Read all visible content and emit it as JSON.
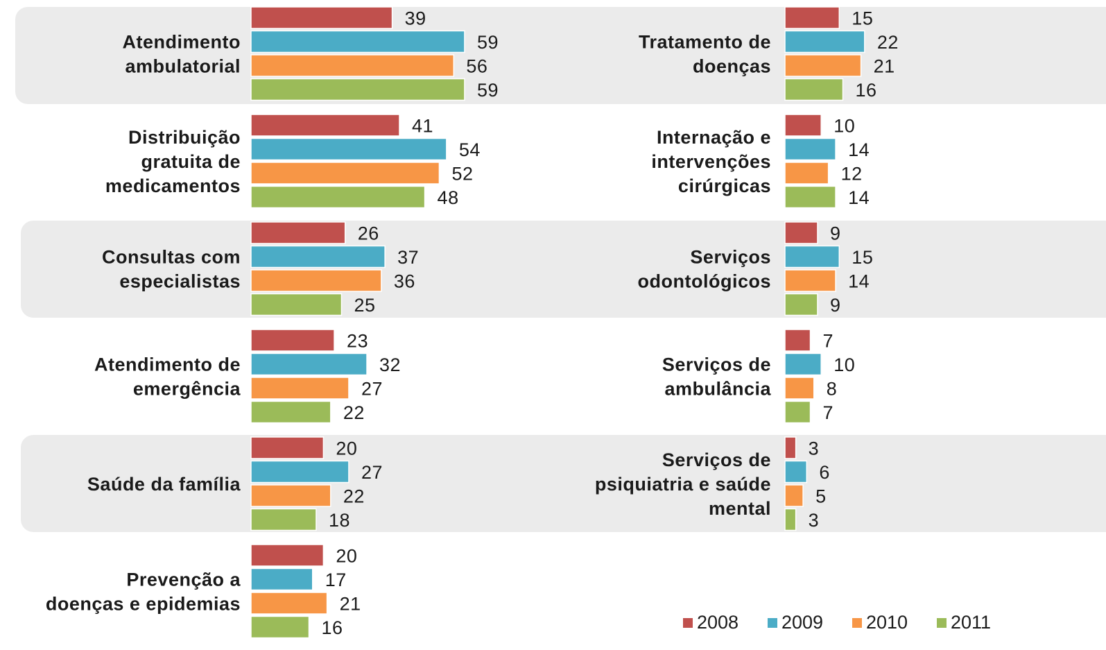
{
  "chart_data": {
    "type": "bar",
    "categories": [
      [
        "Atendimento",
        "ambulatorial"
      ],
      [
        "Distribuição",
        "gratuita de",
        "medicamentos"
      ],
      [
        "Consultas com",
        "especialistas"
      ],
      [
        "Atendimento de",
        "emergência"
      ],
      [
        "Saúde da família"
      ],
      [
        "Prevenção a",
        "doenças e epidemias"
      ],
      [
        "Tratamento de",
        "doenças"
      ],
      [
        "Internação e",
        "intervenções",
        "cirúrgicas"
      ],
      [
        "Serviços",
        "odontológicos"
      ],
      [
        "Serviços de",
        "ambulância"
      ],
      [
        "Serviços de",
        "psiquiatria e saúde",
        "mental"
      ]
    ],
    "series": [
      {
        "name": "2008",
        "color": "#c0504d",
        "values": [
          39,
          41,
          26,
          23,
          20,
          20,
          15,
          10,
          9,
          7,
          3
        ]
      },
      {
        "name": "2009",
        "color": "#4bacc6",
        "values": [
          59,
          54,
          37,
          32,
          27,
          17,
          22,
          14,
          15,
          10,
          6
        ]
      },
      {
        "name": "2010",
        "color": "#f79646",
        "values": [
          56,
          52,
          36,
          27,
          22,
          21,
          21,
          12,
          14,
          8,
          5
        ]
      },
      {
        "name": "2011",
        "color": "#9bbb59",
        "values": [
          59,
          48,
          25,
          22,
          18,
          16,
          16,
          14,
          9,
          7,
          3
        ]
      }
    ],
    "legend": "bottom-right"
  }
}
